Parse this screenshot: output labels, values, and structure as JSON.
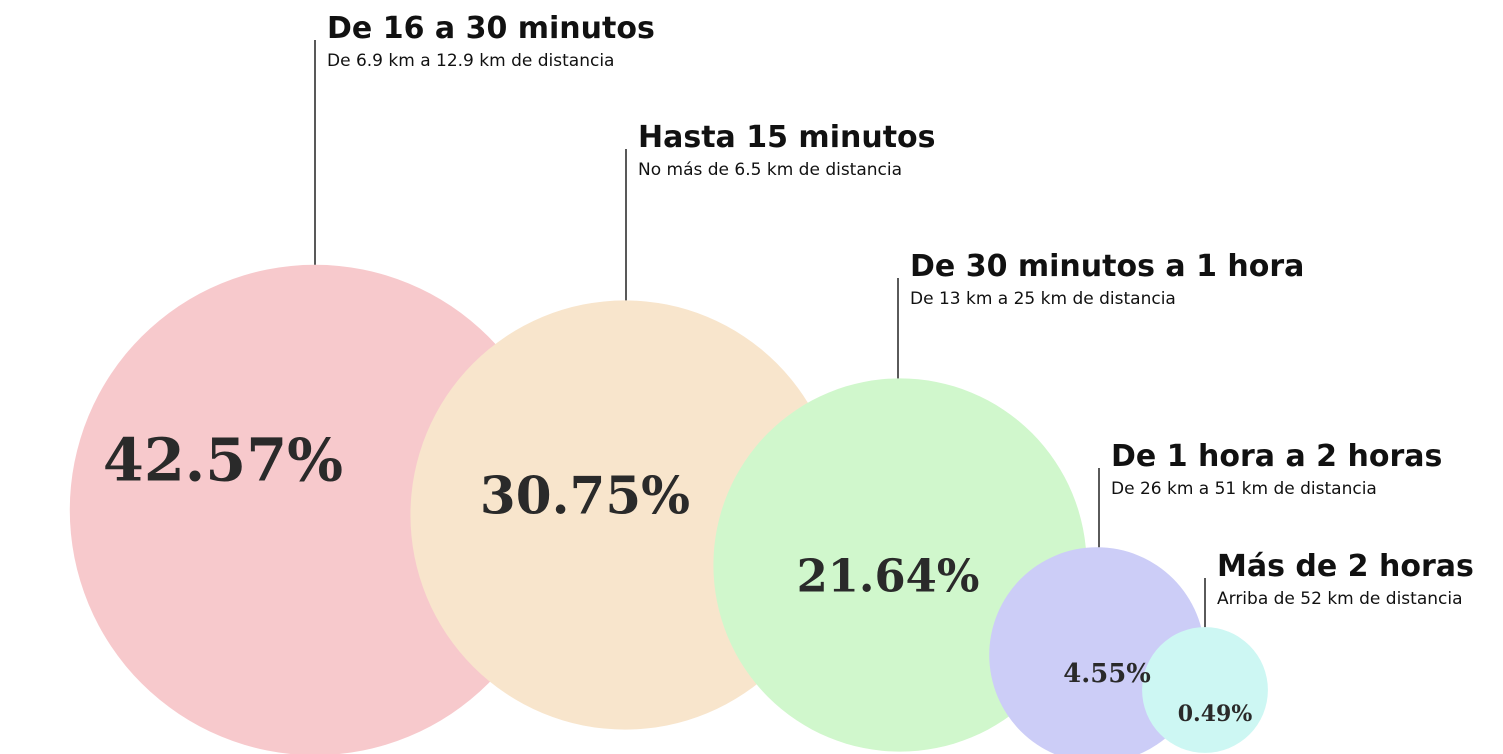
{
  "chart_data": {
    "type": "bubble",
    "categories": [
      "De 16 a 30 minutos",
      "Hasta 15 minutos",
      "De 30 minutos a 1 hora",
      "De 1 hora a 2 horas",
      "Más de 2 horas"
    ],
    "subtitles": [
      "De 6.9 km a 12.9 km de distancia",
      "No más de 6.5 km de distancia",
      "De 13 km a 25 km de distancia",
      "De 26 km a 51 km de distancia",
      "Arriba de 52 km de distancia"
    ],
    "values": [
      42.57,
      30.75,
      21.64,
      4.55,
      0.49
    ],
    "value_labels": [
      "42.57%",
      "30.75%",
      "21.64%",
      "4.55%",
      "0.49%"
    ],
    "colors": [
      "#f7c9cc",
      "#f8e5cc",
      "#d0f7cc",
      "#cccdf7",
      "#cdf7f3"
    ]
  }
}
